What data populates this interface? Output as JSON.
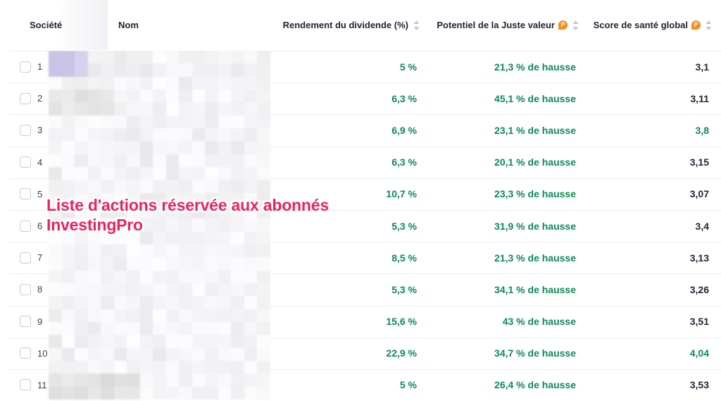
{
  "header": {
    "columns": {
      "societe": {
        "label": "Société"
      },
      "nom": {
        "label": "Nom"
      },
      "dividend": {
        "label": "Rendement du dividende (%)",
        "sortable": true,
        "pro_badge": false
      },
      "fair_value": {
        "label": "Potentiel de la Juste valeur",
        "sortable": true,
        "pro_badge": true
      },
      "health": {
        "label": "Score de santé global",
        "sortable": true,
        "pro_badge": true
      }
    },
    "pro_badge_letter": "P"
  },
  "overlay_note": {
    "line1": "Liste d'actions réservée aux abonnés",
    "line2": "InvestingPro"
  },
  "table": {
    "rows": [
      {
        "index": "1",
        "dividend_yield": "5 %",
        "fair_value_upside": "21,3 % de hausse",
        "health_score": "3,1",
        "health_score_color": "dark"
      },
      {
        "index": "2",
        "dividend_yield": "6,3 %",
        "fair_value_upside": "45,1 % de hausse",
        "health_score": "3,11",
        "health_score_color": "dark"
      },
      {
        "index": "3",
        "dividend_yield": "6,9 %",
        "fair_value_upside": "23,1 % de hausse",
        "health_score": "3,8",
        "health_score_color": "green"
      },
      {
        "index": "4",
        "dividend_yield": "6,3 %",
        "fair_value_upside": "20,1 % de hausse",
        "health_score": "3,15",
        "health_score_color": "dark"
      },
      {
        "index": "5",
        "dividend_yield": "10,7 %",
        "fair_value_upside": "23,3 % de hausse",
        "health_score": "3,07",
        "health_score_color": "dark"
      },
      {
        "index": "6",
        "dividend_yield": "5,3 %",
        "fair_value_upside": "31,9 % de hausse",
        "health_score": "3,4",
        "health_score_color": "dark"
      },
      {
        "index": "7",
        "dividend_yield": "8,5 %",
        "fair_value_upside": "21,3 % de hausse",
        "health_score": "3,13",
        "health_score_color": "dark"
      },
      {
        "index": "8",
        "dividend_yield": "5,3 %",
        "fair_value_upside": "34,1 % de hausse",
        "health_score": "3,26",
        "health_score_color": "dark"
      },
      {
        "index": "9",
        "dividend_yield": "15,6 %",
        "fair_value_upside": "43 % de hausse",
        "health_score": "3,51",
        "health_score_color": "dark"
      },
      {
        "index": "10",
        "dividend_yield": "22,9 %",
        "fair_value_upside": "34,7 % de hausse",
        "health_score": "4,04",
        "health_score_color": "green"
      },
      {
        "index": "11",
        "dividend_yield": "5 %",
        "fair_value_upside": "26,4 % de hausse",
        "health_score": "3,53",
        "health_score_color": "dark"
      }
    ]
  },
  "colors": {
    "positive_green": "#0d8a53",
    "dark_text": "#212634",
    "pro_badge_orange": "#f78b1e",
    "overlay_pink": "#ee2160",
    "row_separator": "#eaedf2"
  }
}
